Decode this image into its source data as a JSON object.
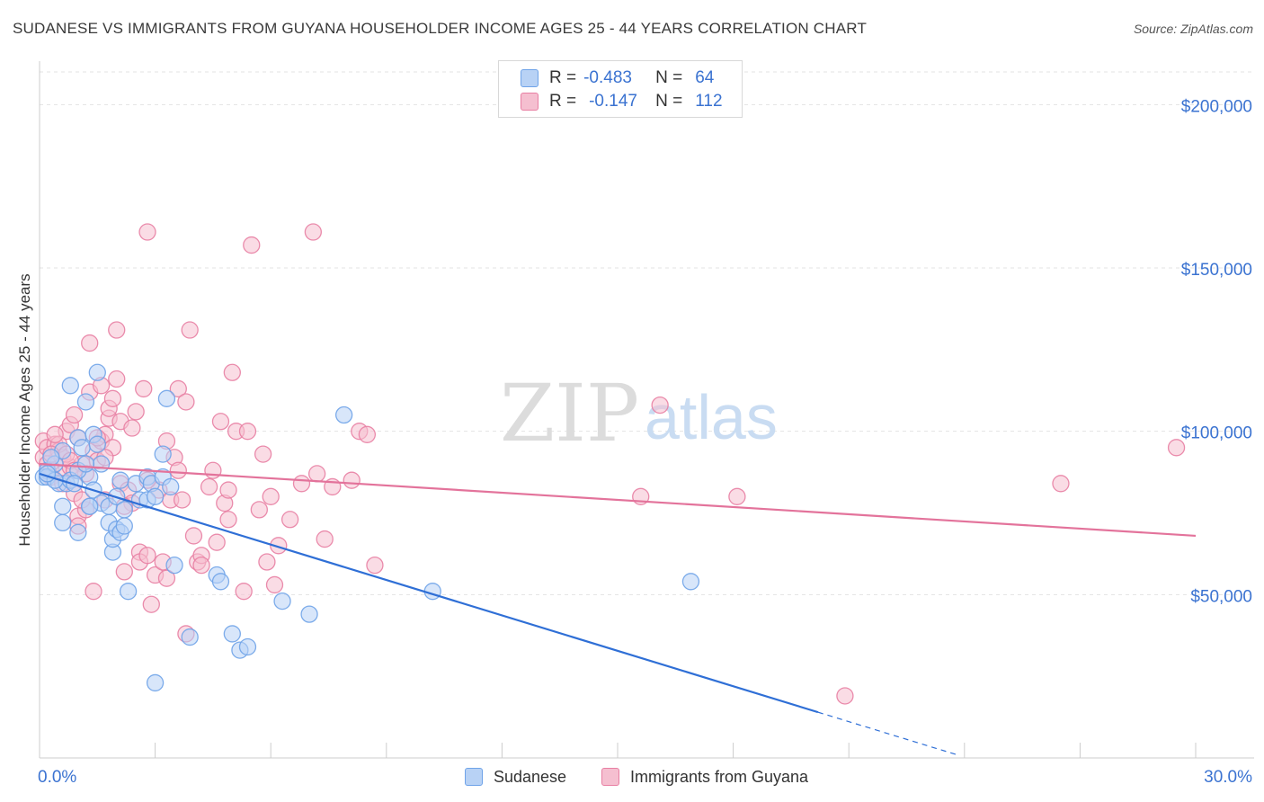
{
  "title": "SUDANESE VS IMMIGRANTS FROM GUYANA HOUSEHOLDER INCOME AGES 25 - 44 YEARS CORRELATION CHART",
  "source": "Source: ZipAtlas.com",
  "watermark": {
    "zip": "ZIP",
    "atlas": "atlas"
  },
  "legend": {
    "sudanese": {
      "r_label": "R =",
      "r_value": "-0.483",
      "n_label": "N =",
      "n_value": "64"
    },
    "guyana": {
      "r_label": "R =",
      "r_value": "-0.147",
      "n_label": "N =",
      "n_value": "112"
    }
  },
  "chart_data": {
    "type": "scatter",
    "title": "SUDANESE VS IMMIGRANTS FROM GUYANA HOUSEHOLDER INCOME AGES 25 - 44 YEARS CORRELATION CHART",
    "ylabel": "Householder Income Ages 25 - 44 years",
    "xlabel": "",
    "xlim": [
      0,
      30
    ],
    "ylim": [
      0,
      210000
    ],
    "x_tick_labels": [
      "0.0%",
      "30.0%"
    ],
    "y_ticks": [
      50000,
      100000,
      150000,
      200000
    ],
    "y_tick_labels": [
      "$50,000",
      "$100,000",
      "$150,000",
      "$200,000"
    ],
    "grid": true,
    "legend_position": "top-center",
    "series": [
      {
        "name": "Sudanese",
        "color": "#6fa3e8",
        "fill": "#b8d2f5",
        "trend": {
          "x0": 0,
          "y0": 87000,
          "x1": 20.2,
          "y1": 14000,
          "dashed_to_x": 23.8,
          "dashed_to_y": 1000
        },
        "points": [
          [
            0.1,
            86000
          ],
          [
            0.2,
            88000
          ],
          [
            0.2,
            86000
          ],
          [
            0.4,
            90000
          ],
          [
            0.5,
            84000
          ],
          [
            0.6,
            72000
          ],
          [
            0.6,
            77000
          ],
          [
            0.6,
            94000
          ],
          [
            0.7,
            84000
          ],
          [
            0.8,
            85000
          ],
          [
            0.8,
            114000
          ],
          [
            1.0,
            98000
          ],
          [
            1.0,
            69000
          ],
          [
            1.1,
            95000
          ],
          [
            1.2,
            109000
          ],
          [
            1.3,
            86000
          ],
          [
            1.3,
            77000
          ],
          [
            1.4,
            99000
          ],
          [
            1.4,
            82000
          ],
          [
            1.5,
            118000
          ],
          [
            1.5,
            96000
          ],
          [
            1.6,
            78000
          ],
          [
            1.8,
            77000
          ],
          [
            1.8,
            72000
          ],
          [
            1.9,
            63000
          ],
          [
            1.9,
            67000
          ],
          [
            2.0,
            70000
          ],
          [
            2.0,
            80000
          ],
          [
            2.1,
            85000
          ],
          [
            2.1,
            69000
          ],
          [
            2.2,
            71000
          ],
          [
            2.3,
            51000
          ],
          [
            2.5,
            84000
          ],
          [
            2.6,
            79000
          ],
          [
            2.8,
            86000
          ],
          [
            2.8,
            79000
          ],
          [
            2.9,
            84000
          ],
          [
            3.0,
            23000
          ],
          [
            3.0,
            80000
          ],
          [
            3.2,
            93000
          ],
          [
            3.2,
            86000
          ],
          [
            3.3,
            110000
          ],
          [
            3.4,
            83000
          ],
          [
            3.5,
            59000
          ],
          [
            3.9,
            37000
          ],
          [
            4.6,
            56000
          ],
          [
            4.7,
            54000
          ],
          [
            5.0,
            38000
          ],
          [
            5.2,
            33000
          ],
          [
            5.4,
            34000
          ],
          [
            6.3,
            48000
          ],
          [
            7.0,
            44000
          ],
          [
            7.9,
            105000
          ],
          [
            10.2,
            51000
          ],
          [
            16.9,
            54000
          ],
          [
            0.3,
            92000
          ],
          [
            0.4,
            85000
          ],
          [
            1.0,
            88000
          ],
          [
            0.9,
            84000
          ],
          [
            1.3,
            77000
          ],
          [
            0.2,
            87000
          ],
          [
            1.6,
            90000
          ],
          [
            2.2,
            76000
          ],
          [
            1.2,
            90000
          ]
        ]
      },
      {
        "name": "Immigrants from Guyana",
        "color": "#e87fa3",
        "fill": "#f5bfd0",
        "trend": {
          "x0": 0,
          "y0": 90000,
          "x1": 30,
          "y1": 68000
        },
        "points": [
          [
            0.1,
            97000
          ],
          [
            0.1,
            92000
          ],
          [
            0.2,
            95000
          ],
          [
            0.2,
            90000
          ],
          [
            0.3,
            88000
          ],
          [
            0.4,
            96000
          ],
          [
            0.5,
            94000
          ],
          [
            0.6,
            92000
          ],
          [
            0.6,
            87000
          ],
          [
            0.7,
            100000
          ],
          [
            0.8,
            102000
          ],
          [
            0.8,
            89000
          ],
          [
            0.9,
            105000
          ],
          [
            0.9,
            81000
          ],
          [
            1.0,
            98000
          ],
          [
            1.0,
            74000
          ],
          [
            1.1,
            90000
          ],
          [
            1.2,
            76000
          ],
          [
            1.2,
            87000
          ],
          [
            1.3,
            127000
          ],
          [
            1.3,
            112000
          ],
          [
            1.4,
            94000
          ],
          [
            1.5,
            91000
          ],
          [
            1.6,
            114000
          ],
          [
            1.6,
            97000
          ],
          [
            1.7,
            99000
          ],
          [
            1.7,
            79000
          ],
          [
            1.8,
            104000
          ],
          [
            1.8,
            107000
          ],
          [
            1.9,
            110000
          ],
          [
            1.9,
            95000
          ],
          [
            2.0,
            131000
          ],
          [
            2.0,
            116000
          ],
          [
            2.1,
            103000
          ],
          [
            2.1,
            84000
          ],
          [
            2.2,
            57000
          ],
          [
            2.3,
            82000
          ],
          [
            2.4,
            78000
          ],
          [
            2.5,
            106000
          ],
          [
            2.6,
            63000
          ],
          [
            2.6,
            60000
          ],
          [
            2.7,
            113000
          ],
          [
            2.8,
            161000
          ],
          [
            2.8,
            62000
          ],
          [
            3.0,
            56000
          ],
          [
            3.1,
            82000
          ],
          [
            3.2,
            60000
          ],
          [
            3.3,
            97000
          ],
          [
            3.4,
            79000
          ],
          [
            3.5,
            92000
          ],
          [
            3.6,
            113000
          ],
          [
            3.7,
            79000
          ],
          [
            3.8,
            109000
          ],
          [
            3.9,
            131000
          ],
          [
            4.0,
            68000
          ],
          [
            4.1,
            60000
          ],
          [
            4.2,
            62000
          ],
          [
            4.4,
            83000
          ],
          [
            4.5,
            88000
          ],
          [
            4.6,
            66000
          ],
          [
            4.7,
            103000
          ],
          [
            4.8,
            78000
          ],
          [
            4.9,
            73000
          ],
          [
            5.0,
            118000
          ],
          [
            5.1,
            100000
          ],
          [
            5.3,
            51000
          ],
          [
            5.4,
            100000
          ],
          [
            5.5,
            157000
          ],
          [
            5.8,
            93000
          ],
          [
            5.9,
            60000
          ],
          [
            6.0,
            80000
          ],
          [
            6.2,
            65000
          ],
          [
            6.5,
            73000
          ],
          [
            6.8,
            84000
          ],
          [
            7.1,
            161000
          ],
          [
            7.2,
            87000
          ],
          [
            7.4,
            67000
          ],
          [
            7.6,
            83000
          ],
          [
            8.1,
            85000
          ],
          [
            8.3,
            100000
          ],
          [
            8.5,
            99000
          ],
          [
            8.7,
            59000
          ],
          [
            15.6,
            80000
          ],
          [
            16.1,
            108000
          ],
          [
            18.1,
            80000
          ],
          [
            20.9,
            19000
          ],
          [
            26.5,
            84000
          ],
          [
            29.5,
            95000
          ],
          [
            0.3,
            86000
          ],
          [
            0.5,
            96000
          ],
          [
            0.7,
            93000
          ],
          [
            1.1,
            79000
          ],
          [
            1.4,
            51000
          ],
          [
            2.4,
            101000
          ],
          [
            2.9,
            47000
          ],
          [
            3.3,
            55000
          ],
          [
            3.8,
            38000
          ],
          [
            4.2,
            59000
          ],
          [
            1.0,
            71000
          ],
          [
            0.8,
            91000
          ],
          [
            0.4,
            99000
          ],
          [
            0.9,
            88000
          ],
          [
            1.5,
            98000
          ],
          [
            2.2,
            77000
          ],
          [
            3.6,
            88000
          ],
          [
            0.6,
            84000
          ],
          [
            1.7,
            92000
          ],
          [
            6.1,
            53000
          ],
          [
            0.3,
            93000
          ],
          [
            2.8,
            85000
          ],
          [
            4.9,
            82000
          ],
          [
            5.7,
            76000
          ]
        ]
      }
    ]
  }
}
